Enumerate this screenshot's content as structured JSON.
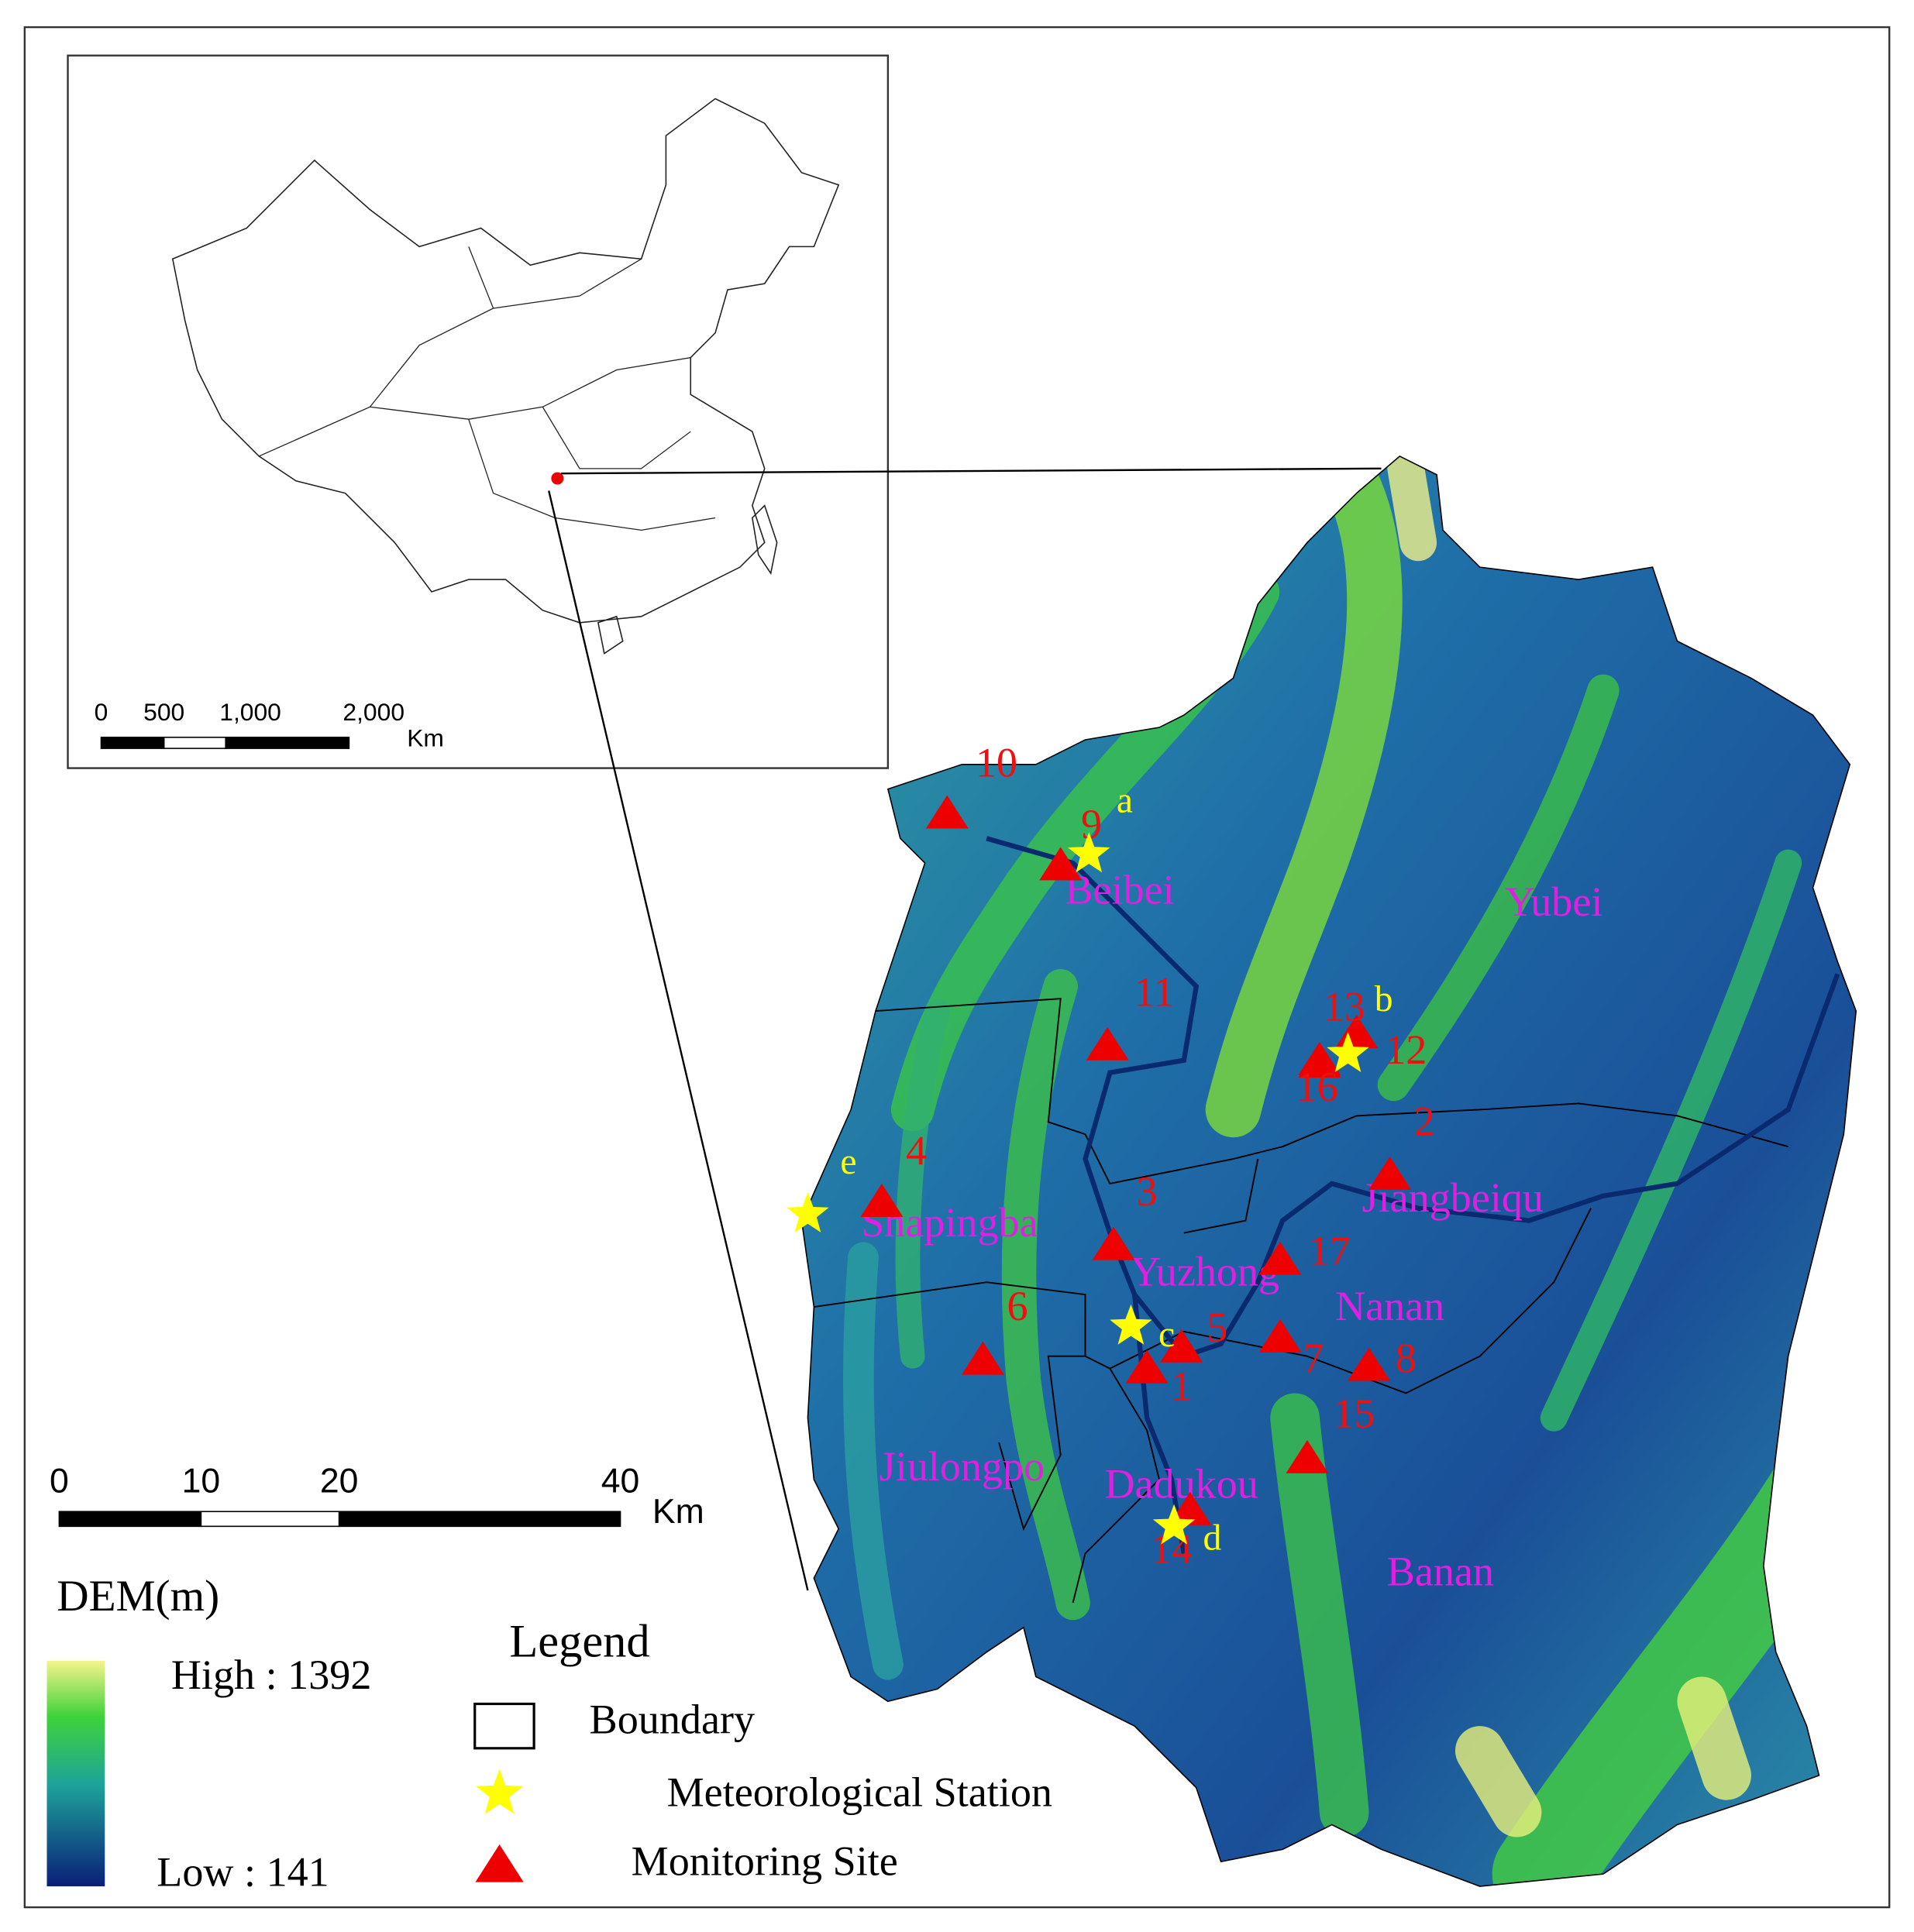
{
  "inset": {
    "scale_labels": [
      "0",
      "500",
      "1,000",
      "2,000"
    ],
    "scale_unit": "Km"
  },
  "scale_bar": {
    "labels": [
      "0",
      "10",
      "20",
      "40"
    ],
    "unit": "Km"
  },
  "dem": {
    "title": "DEM(m)",
    "high": "High : 1392",
    "low": "Low : 141"
  },
  "legend": {
    "title": "Legend",
    "items": [
      "Boundary",
      "Meteorological Station",
      "Monitoring Site"
    ]
  },
  "districts": [
    "Beibei",
    "Yubei",
    "Jiangbeiqu",
    "Shapingba",
    "Yuzhong",
    "Nanan",
    "Jiulongpo",
    "Dadukou",
    "Banan"
  ],
  "monitoring_sites": [
    "1",
    "2",
    "3",
    "4",
    "5",
    "6",
    "7",
    "8",
    "9",
    "10",
    "11",
    "12",
    "13",
    "14",
    "15",
    "16",
    "17"
  ],
  "stations": [
    "a",
    "b",
    "c",
    "d",
    "e"
  ]
}
